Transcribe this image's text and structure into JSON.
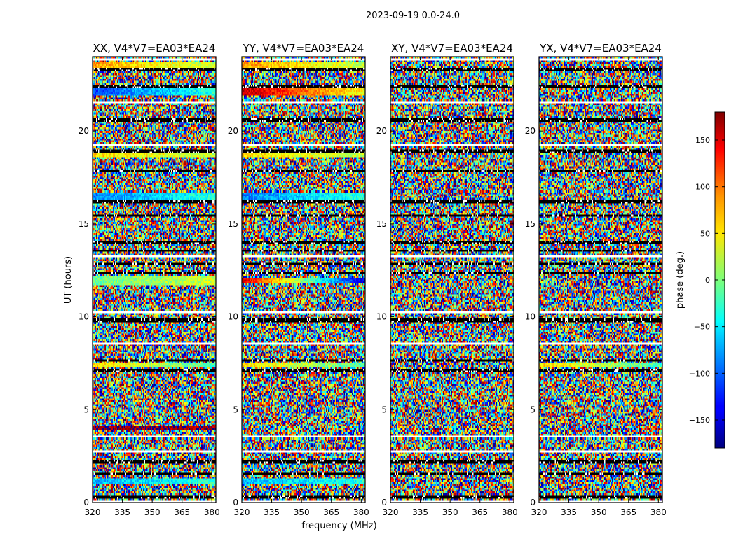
{
  "figure_title": "2023-09-19 0.0-24.0",
  "colors": {
    "frame": "#000000",
    "background": "#ffffff"
  },
  "chart_data": {
    "type": "heatmap",
    "title": "2023-09-19 0.0-24.0",
    "xlabel": "frequency (MHz)",
    "ylabel": "UT (hours)",
    "xlim": [
      320,
      382
    ],
    "ylim": [
      0,
      24
    ],
    "xticks": [
      320,
      335,
      350,
      365,
      380
    ],
    "yticks": [
      0,
      5,
      10,
      15,
      20
    ],
    "colorbar": {
      "label": "phase (deg.)",
      "colormap": "jet",
      "range": [
        -180,
        180
      ],
      "ticks": [
        150,
        100,
        50,
        0,
        -50,
        -100,
        -150
      ],
      "tick_labels": [
        "150",
        "100",
        "50",
        "0",
        "−50",
        "−100",
        "−150"
      ],
      "footer": "......"
    },
    "panels": [
      {
        "title": "XX, V4*V7=EA03*EA24",
        "polarization": "XX"
      },
      {
        "title": "YY, V4*V7=EA03*EA24",
        "polarization": "YY"
      },
      {
        "title": "XY, V4*V7=EA03*EA24",
        "polarization": "XY"
      },
      {
        "title": "YX, V4*V7=EA03*EA24",
        "polarization": "YX"
      }
    ],
    "flagged_ut": [
      0.3,
      1.55,
      2.2,
      7.1,
      7.65,
      9.8,
      12.35,
      12.85,
      13.55,
      14.0,
      15.45,
      16.2,
      17.85,
      18.9,
      20.6,
      22.4,
      23.3
    ],
    "blank_ut": [
      0.05,
      2.75,
      3.55,
      6.0,
      8.55,
      10.25,
      13.25,
      19.25,
      21.55,
      23.9
    ],
    "coherent_bands": [
      {
        "ut": [
          0.95,
          1.25
        ],
        "panels": [
          "XX",
          "YY"
        ],
        "phase": -70,
        "trend": 40
      },
      {
        "ut": [
          3.9,
          4.05
        ],
        "panels": [
          "XX"
        ],
        "phase": 170,
        "trend": 0
      },
      {
        "ut": [
          7.3,
          7.55
        ],
        "panels": [
          "XX",
          "YY",
          "YX"
        ],
        "phase": 60,
        "trend": -80
      },
      {
        "ut": [
          11.75,
          12.15
        ],
        "panels": [
          "XX"
        ],
        "phase": -10,
        "trend": 40
      },
      {
        "ut": [
          11.8,
          12.1
        ],
        "panels": [
          "YY"
        ],
        "phase": 150,
        "trend": -300
      },
      {
        "ut": [
          16.35,
          16.7
        ],
        "panels": [
          "XX",
          "YY"
        ],
        "phase": -90,
        "trend": 60
      },
      {
        "ut": [
          18.6,
          18.85
        ],
        "panels": [
          "XX",
          "YY"
        ],
        "phase": 60,
        "trend": -40
      },
      {
        "ut": [
          21.95,
          22.35
        ],
        "panels": [
          "XX"
        ],
        "phase": -110,
        "trend": 80
      },
      {
        "ut": [
          21.95,
          22.35
        ],
        "panels": [
          "YY"
        ],
        "phase": 160,
        "trend": -120
      },
      {
        "ut": [
          23.3,
          23.7
        ],
        "panels": [
          "XX",
          "YY"
        ],
        "phase": 80,
        "trend": -60
      }
    ]
  }
}
